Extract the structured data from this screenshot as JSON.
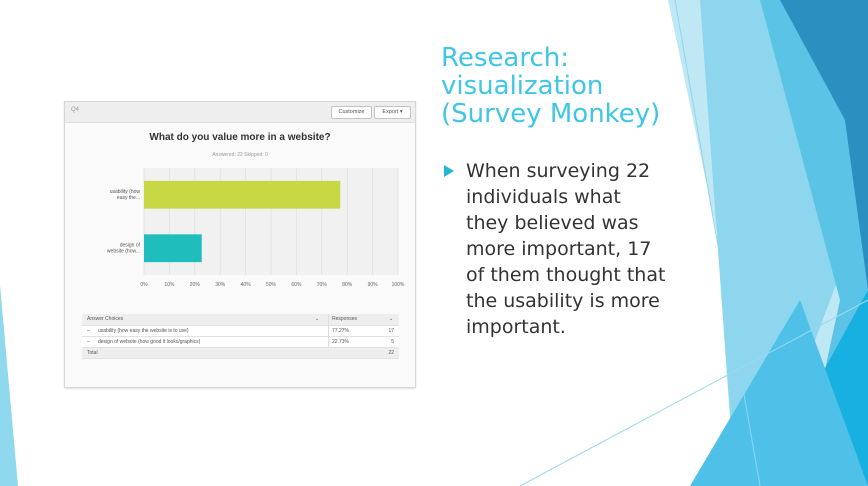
{
  "slide": {
    "title": "Research: visualization (Survey Monkey)",
    "bullet": "When surveying 22 individuals what they believed was more important, 17 of them thought that the usability is more important.",
    "accent_color": "#3fc6e4",
    "bullet_icon": "triangle-bullet-icon"
  },
  "panel": {
    "question_number": "Q4",
    "customize_label": "Customize",
    "export_label": "Export ▾",
    "chart_title": "What do you value more in a website?",
    "answered_text": "Answered: 22    Skipped: 0"
  },
  "chart_data": {
    "type": "bar",
    "orientation": "horizontal",
    "title": "What do you value more in a website?",
    "categories": [
      "usability (how easy the...",
      "design of website (how..."
    ],
    "values": [
      77.27,
      22.73
    ],
    "xlim": [
      0,
      100
    ],
    "x_ticks": [
      "0%",
      "10%",
      "20%",
      "30%",
      "40%",
      "50%",
      "60%",
      "70%",
      "80%",
      "90%",
      "100%"
    ],
    "colors": [
      "#c8d744",
      "#1fbdbc"
    ],
    "grid": true
  },
  "table": {
    "headers": [
      "Answer Choices",
      "Responses"
    ],
    "rows": [
      {
        "choice": "usability (how easy the website is to use)",
        "percent": "77.27%",
        "count": "17"
      },
      {
        "choice": "design of website (how good it looks/graphics)",
        "percent": "22.73%",
        "count": "5"
      }
    ],
    "total_label": "Total",
    "total_count": "22"
  }
}
